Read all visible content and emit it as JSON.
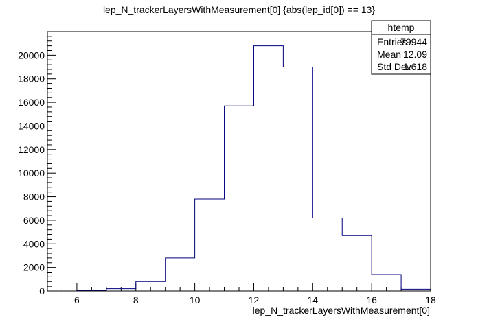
{
  "chart_data": {
    "type": "bar",
    "title": "lep_N_trackerLayersWithMeasurement[0] {abs(lep_id[0]) == 13}",
    "xlabel": "lep_N_trackerLayersWithMeasurement[0]",
    "ylabel": "",
    "xlim": [
      5,
      18
    ],
    "ylim": [
      0,
      22000
    ],
    "x_ticks": [
      6,
      8,
      10,
      12,
      14,
      16,
      18
    ],
    "y_ticks": [
      0,
      2000,
      4000,
      6000,
      8000,
      10000,
      12000,
      14000,
      16000,
      18000,
      20000
    ],
    "bin_edges": [
      5,
      6,
      7,
      8,
      9,
      10,
      11,
      12,
      13,
      14,
      15,
      16,
      17,
      18
    ],
    "values": [
      0,
      30,
      200,
      800,
      2800,
      7800,
      15700,
      20800,
      19000,
      6200,
      4700,
      1400,
      150
    ],
    "line_color": "#00007f",
    "stats_box": {
      "name": "htemp",
      "rows": [
        {
          "label": "Entries",
          "value": "79944"
        },
        {
          "label": "Mean",
          "value": "12.09"
        },
        {
          "label": "Std Dev",
          "value": "1.618"
        }
      ]
    }
  }
}
